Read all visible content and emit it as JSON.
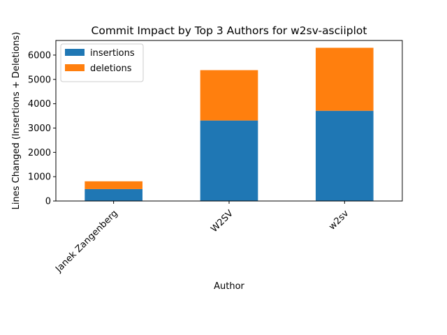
{
  "chart_data": {
    "type": "bar",
    "stacked": true,
    "title": "Commit Impact by Top 3 Authors for w2sv-asciiplot",
    "xlabel": "Author",
    "ylabel": "Lines Changed (Insertions + Deletions)",
    "categories": [
      "Janek Zangenberg",
      "W2SV",
      "w2sv"
    ],
    "series": [
      {
        "name": "insertions",
        "color": "#1f77b4",
        "values": [
          490,
          3310,
          3710
        ]
      },
      {
        "name": "deletions",
        "color": "#ff7f0e",
        "values": [
          320,
          2070,
          2590
        ]
      }
    ],
    "ylim": [
      0,
      6600
    ],
    "yticks": [
      0,
      1000,
      2000,
      3000,
      4000,
      5000,
      6000
    ],
    "grid": false,
    "legend": "top-left"
  }
}
